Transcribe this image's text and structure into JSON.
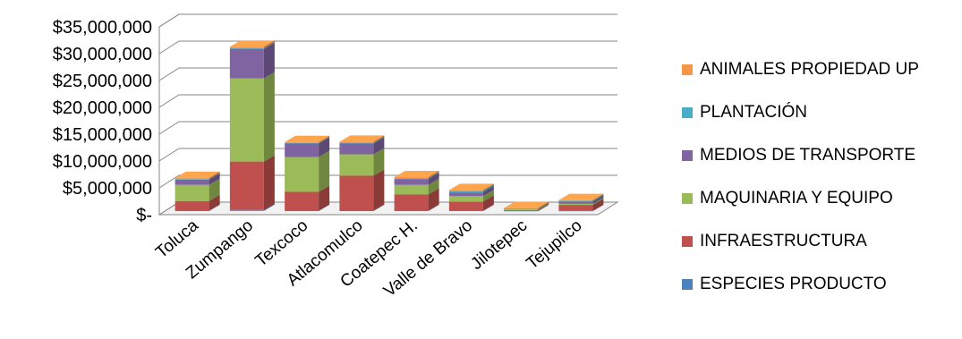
{
  "chart_data": {
    "type": "bar",
    "stacked": true,
    "three_d": true,
    "categories": [
      "Toluca",
      "Zumpango",
      "Texcoco",
      "Atlacomulco",
      "Coatepec H.",
      "Valle de Bravo",
      "Jilotepec",
      "Tejupilco"
    ],
    "series": [
      {
        "name": "ESPECIES  PRODUCTO",
        "color": "#4F81BD",
        "values": [
          50000,
          200000,
          50000,
          50000,
          50000,
          50000,
          10000,
          20000
        ]
      },
      {
        "name": "INFRAESTRUCTURA",
        "color": "#C0504D",
        "values": [
          1800000,
          9000000,
          3500000,
          6500000,
          3000000,
          1700000,
          150000,
          1100000
        ]
      },
      {
        "name": "MAQUINARIA  Y EQUIPO",
        "color": "#9BBB59",
        "values": [
          3000000,
          15500000,
          6500000,
          4000000,
          1800000,
          1000000,
          200000,
          200000
        ]
      },
      {
        "name": "MEDIOS DE TRANSPORTE",
        "color": "#8064A2",
        "values": [
          1000000,
          5500000,
          2500000,
          2000000,
          1100000,
          700000,
          100000,
          400000
        ]
      },
      {
        "name": "PLANTACIÓN",
        "color": "#4BACC6",
        "values": [
          100000,
          100000,
          100000,
          150000,
          150000,
          300000,
          30000,
          200000
        ]
      },
      {
        "name": "ANIMALES  PROPIEDAD UP",
        "color": "#F79646",
        "values": [
          200000,
          300000,
          200000,
          200000,
          200000,
          150000,
          30000,
          100000
        ]
      }
    ],
    "y_ticks": [
      "$-",
      "$5,000,000",
      "$10,000,000",
      "$15,000,000",
      "$20,000,000",
      "$25,000,000",
      "$30,000,000",
      "$35,000,000"
    ],
    "ylim": [
      0,
      35000000
    ],
    "grid": true,
    "legend_position": "right",
    "legend_order": [
      "ANIMALES  PROPIEDAD UP",
      "PLANTACIÓN",
      "MEDIOS DE TRANSPORTE",
      "MAQUINARIA  Y EQUIPO",
      "INFRAESTRUCTURA",
      "ESPECIES  PRODUCTO"
    ]
  }
}
